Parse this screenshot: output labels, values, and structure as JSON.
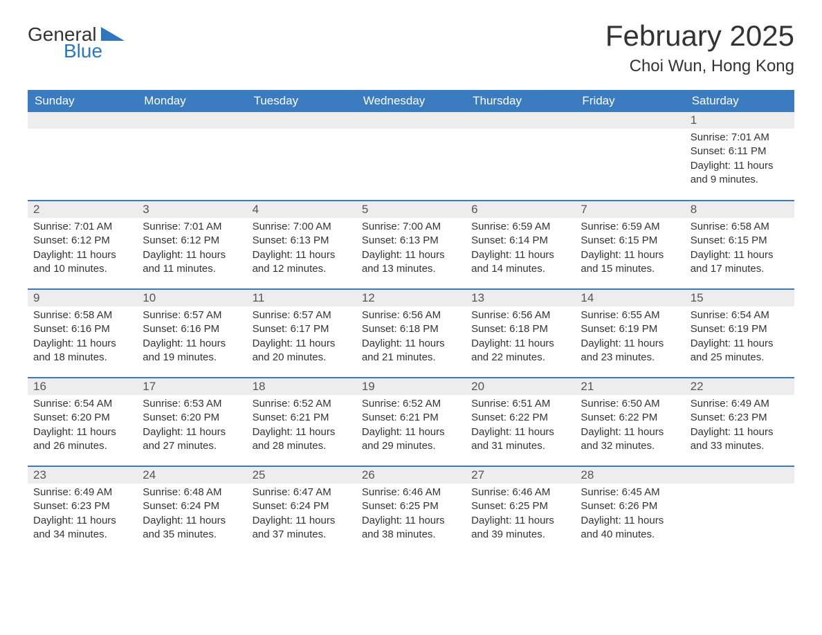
{
  "logo": {
    "text1": "General",
    "text2": "Blue"
  },
  "header": {
    "title": "February 2025",
    "location": "Choi Wun, Hong Kong"
  },
  "colors": {
    "header_bg": "#3b7bbf",
    "header_text": "#ffffff",
    "daynum_bg": "#ededed",
    "text": "#333333",
    "logo_blue": "#2f77bd"
  },
  "dayNames": [
    "Sunday",
    "Monday",
    "Tuesday",
    "Wednesday",
    "Thursday",
    "Friday",
    "Saturday"
  ],
  "weeks": [
    [
      {
        "day": "",
        "sunrise": "",
        "sunset": "",
        "daylight": ""
      },
      {
        "day": "",
        "sunrise": "",
        "sunset": "",
        "daylight": ""
      },
      {
        "day": "",
        "sunrise": "",
        "sunset": "",
        "daylight": ""
      },
      {
        "day": "",
        "sunrise": "",
        "sunset": "",
        "daylight": ""
      },
      {
        "day": "",
        "sunrise": "",
        "sunset": "",
        "daylight": ""
      },
      {
        "day": "",
        "sunrise": "",
        "sunset": "",
        "daylight": ""
      },
      {
        "day": "1",
        "sunrise": "Sunrise: 7:01 AM",
        "sunset": "Sunset: 6:11 PM",
        "daylight": "Daylight: 11 hours and 9 minutes."
      }
    ],
    [
      {
        "day": "2",
        "sunrise": "Sunrise: 7:01 AM",
        "sunset": "Sunset: 6:12 PM",
        "daylight": "Daylight: 11 hours and 10 minutes."
      },
      {
        "day": "3",
        "sunrise": "Sunrise: 7:01 AM",
        "sunset": "Sunset: 6:12 PM",
        "daylight": "Daylight: 11 hours and 11 minutes."
      },
      {
        "day": "4",
        "sunrise": "Sunrise: 7:00 AM",
        "sunset": "Sunset: 6:13 PM",
        "daylight": "Daylight: 11 hours and 12 minutes."
      },
      {
        "day": "5",
        "sunrise": "Sunrise: 7:00 AM",
        "sunset": "Sunset: 6:13 PM",
        "daylight": "Daylight: 11 hours and 13 minutes."
      },
      {
        "day": "6",
        "sunrise": "Sunrise: 6:59 AM",
        "sunset": "Sunset: 6:14 PM",
        "daylight": "Daylight: 11 hours and 14 minutes."
      },
      {
        "day": "7",
        "sunrise": "Sunrise: 6:59 AM",
        "sunset": "Sunset: 6:15 PM",
        "daylight": "Daylight: 11 hours and 15 minutes."
      },
      {
        "day": "8",
        "sunrise": "Sunrise: 6:58 AM",
        "sunset": "Sunset: 6:15 PM",
        "daylight": "Daylight: 11 hours and 17 minutes."
      }
    ],
    [
      {
        "day": "9",
        "sunrise": "Sunrise: 6:58 AM",
        "sunset": "Sunset: 6:16 PM",
        "daylight": "Daylight: 11 hours and 18 minutes."
      },
      {
        "day": "10",
        "sunrise": "Sunrise: 6:57 AM",
        "sunset": "Sunset: 6:16 PM",
        "daylight": "Daylight: 11 hours and 19 minutes."
      },
      {
        "day": "11",
        "sunrise": "Sunrise: 6:57 AM",
        "sunset": "Sunset: 6:17 PM",
        "daylight": "Daylight: 11 hours and 20 minutes."
      },
      {
        "day": "12",
        "sunrise": "Sunrise: 6:56 AM",
        "sunset": "Sunset: 6:18 PM",
        "daylight": "Daylight: 11 hours and 21 minutes."
      },
      {
        "day": "13",
        "sunrise": "Sunrise: 6:56 AM",
        "sunset": "Sunset: 6:18 PM",
        "daylight": "Daylight: 11 hours and 22 minutes."
      },
      {
        "day": "14",
        "sunrise": "Sunrise: 6:55 AM",
        "sunset": "Sunset: 6:19 PM",
        "daylight": "Daylight: 11 hours and 23 minutes."
      },
      {
        "day": "15",
        "sunrise": "Sunrise: 6:54 AM",
        "sunset": "Sunset: 6:19 PM",
        "daylight": "Daylight: 11 hours and 25 minutes."
      }
    ],
    [
      {
        "day": "16",
        "sunrise": "Sunrise: 6:54 AM",
        "sunset": "Sunset: 6:20 PM",
        "daylight": "Daylight: 11 hours and 26 minutes."
      },
      {
        "day": "17",
        "sunrise": "Sunrise: 6:53 AM",
        "sunset": "Sunset: 6:20 PM",
        "daylight": "Daylight: 11 hours and 27 minutes."
      },
      {
        "day": "18",
        "sunrise": "Sunrise: 6:52 AM",
        "sunset": "Sunset: 6:21 PM",
        "daylight": "Daylight: 11 hours and 28 minutes."
      },
      {
        "day": "19",
        "sunrise": "Sunrise: 6:52 AM",
        "sunset": "Sunset: 6:21 PM",
        "daylight": "Daylight: 11 hours and 29 minutes."
      },
      {
        "day": "20",
        "sunrise": "Sunrise: 6:51 AM",
        "sunset": "Sunset: 6:22 PM",
        "daylight": "Daylight: 11 hours and 31 minutes."
      },
      {
        "day": "21",
        "sunrise": "Sunrise: 6:50 AM",
        "sunset": "Sunset: 6:22 PM",
        "daylight": "Daylight: 11 hours and 32 minutes."
      },
      {
        "day": "22",
        "sunrise": "Sunrise: 6:49 AM",
        "sunset": "Sunset: 6:23 PM",
        "daylight": "Daylight: 11 hours and 33 minutes."
      }
    ],
    [
      {
        "day": "23",
        "sunrise": "Sunrise: 6:49 AM",
        "sunset": "Sunset: 6:23 PM",
        "daylight": "Daylight: 11 hours and 34 minutes."
      },
      {
        "day": "24",
        "sunrise": "Sunrise: 6:48 AM",
        "sunset": "Sunset: 6:24 PM",
        "daylight": "Daylight: 11 hours and 35 minutes."
      },
      {
        "day": "25",
        "sunrise": "Sunrise: 6:47 AM",
        "sunset": "Sunset: 6:24 PM",
        "daylight": "Daylight: 11 hours and 37 minutes."
      },
      {
        "day": "26",
        "sunrise": "Sunrise: 6:46 AM",
        "sunset": "Sunset: 6:25 PM",
        "daylight": "Daylight: 11 hours and 38 minutes."
      },
      {
        "day": "27",
        "sunrise": "Sunrise: 6:46 AM",
        "sunset": "Sunset: 6:25 PM",
        "daylight": "Daylight: 11 hours and 39 minutes."
      },
      {
        "day": "28",
        "sunrise": "Sunrise: 6:45 AM",
        "sunset": "Sunset: 6:26 PM",
        "daylight": "Daylight: 11 hours and 40 minutes."
      },
      {
        "day": "",
        "sunrise": "",
        "sunset": "",
        "daylight": ""
      }
    ]
  ]
}
